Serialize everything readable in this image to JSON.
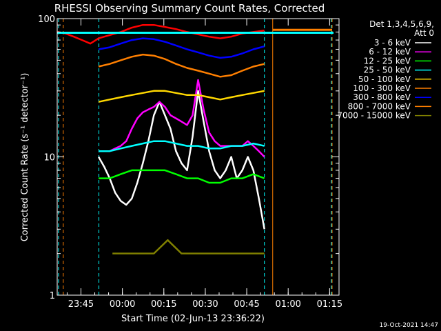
{
  "chart_data": {
    "type": "line",
    "title": "RHESSI Observing Summary Count Rates, Corrected",
    "xlabel": "Start Time (02-Jun-13 23:36:22)",
    "ylabel": "Corrected Count Rate (s⁻¹ detector⁻¹)",
    "y_scale": "log",
    "ylim": [
      1,
      100
    ],
    "xlim_minutes": [
      0,
      102
    ],
    "x_tick_labels": [
      "23:45",
      "00:00",
      "00:15",
      "00:30",
      "00:45",
      "01:00",
      "01:15"
    ],
    "x_tick_minutes": [
      8.6,
      23.6,
      38.6,
      53.6,
      68.6,
      83.6,
      98.6
    ],
    "y_tick_labels": [
      "1",
      "10",
      "100"
    ],
    "y_tick_values": [
      1,
      10,
      100
    ],
    "legend_title": [
      "Det 1,3,4,5,6,9,",
      "Att 0"
    ],
    "legend_position": "right",
    "timestamp": "19-Oct-2021 14:47",
    "vlines_cyan_minutes": [
      0.5,
      15.1,
      75.0,
      99.2
    ],
    "vlines_orange_minutes": [
      2.2,
      78.0,
      99.5
    ],
    "series": [
      {
        "name": "3 - 6 keV",
        "color": "#ffffff",
        "x": [
          15,
          17,
          19,
          21,
          23,
          25,
          27,
          29,
          31,
          33,
          35,
          37,
          39,
          41,
          43,
          45,
          47,
          49,
          51,
          53,
          55,
          57,
          59,
          61,
          63,
          65,
          67,
          69,
          71,
          73,
          75
        ],
        "y": [
          10,
          8.5,
          7,
          5.5,
          4.8,
          4.5,
          5,
          6.5,
          9,
          13,
          20,
          25,
          20,
          16,
          11,
          9,
          8,
          14,
          30,
          18,
          11,
          8,
          7,
          8,
          10,
          7,
          8,
          10,
          8,
          5,
          3
        ]
      },
      {
        "name": "6 - 12 keV",
        "color": "#ff00ff",
        "x": [
          15,
          17,
          19,
          21,
          23,
          25,
          27,
          29,
          31,
          33,
          35,
          37,
          39,
          41,
          43,
          45,
          47,
          49,
          51,
          53,
          55,
          57,
          59,
          61,
          63,
          65,
          67,
          69,
          71,
          73,
          75
        ],
        "y": [
          11,
          11,
          11,
          11.5,
          12,
          13,
          16,
          19,
          21,
          22,
          23,
          25,
          23,
          20,
          19,
          18,
          17,
          20,
          36,
          22,
          15,
          13,
          12,
          12,
          12,
          12,
          12,
          13,
          12,
          11,
          10
        ]
      },
      {
        "name": "12 - 25 keV",
        "color": "#00ff00",
        "x": [
          15,
          19,
          23,
          27,
          31,
          35,
          39,
          43,
          47,
          51,
          55,
          59,
          63,
          67,
          71,
          75
        ],
        "y": [
          7,
          7,
          7.5,
          8,
          8,
          8,
          8,
          7.5,
          7,
          7,
          6.5,
          6.5,
          7,
          7,
          7.5,
          7
        ]
      },
      {
        "name": "25 - 50 keV",
        "color": "#00ffff",
        "x": [
          15,
          19,
          23,
          27,
          31,
          35,
          39,
          43,
          47,
          51,
          55,
          59,
          63,
          67,
          71,
          75
        ],
        "y": [
          11,
          11,
          11.5,
          12,
          12.5,
          13,
          13,
          12.5,
          12,
          12,
          11.5,
          11.5,
          12,
          12,
          12.5,
          12
        ]
      },
      {
        "name": "50 - 100 keV",
        "color": "#ffd800",
        "x": [
          15,
          19,
          23,
          27,
          31,
          35,
          39,
          43,
          47,
          51,
          55,
          59,
          63,
          67,
          71,
          75
        ],
        "y": [
          25,
          26,
          27,
          28,
          29,
          30,
          30,
          29,
          28,
          28,
          27,
          26,
          27,
          28,
          29,
          30
        ]
      },
      {
        "name": "100 - 300 keV",
        "color": "#ff7f00",
        "x": [
          15,
          19,
          23,
          27,
          31,
          35,
          39,
          43,
          47,
          51,
          55,
          59,
          63,
          67,
          71,
          75
        ],
        "y": [
          45,
          47,
          50,
          53,
          55,
          54,
          51,
          47,
          44,
          42,
          40,
          38,
          39,
          42,
          45,
          47
        ]
      },
      {
        "name": "300 - 800 keV",
        "color": "#0000ff",
        "x": [
          15,
          19,
          23,
          27,
          31,
          35,
          39,
          43,
          47,
          51,
          55,
          59,
          63,
          67,
          71,
          75
        ],
        "y": [
          60,
          62,
          66,
          70,
          72,
          71,
          68,
          64,
          60,
          57,
          54,
          52,
          53,
          56,
          60,
          63
        ]
      },
      {
        "name": "800 - 7000 keV",
        "color": "#ff7f00",
        "x": [
          78,
          99.5
        ],
        "y": [
          83,
          83
        ]
      },
      {
        "name": "7000 - 15000 keV",
        "color": "#808000",
        "x": [
          20,
          25,
          30,
          35,
          40,
          45,
          50,
          55,
          60,
          65,
          70,
          75
        ],
        "y": [
          2,
          2,
          2,
          2,
          2.5,
          2,
          2,
          2,
          2,
          2,
          2,
          2
        ]
      },
      {
        "name": "",
        "color": "#ff0000",
        "x": [
          0,
          3,
          6,
          9,
          12,
          15,
          19,
          23,
          27,
          31,
          35,
          39,
          43,
          47,
          51,
          55,
          59,
          63,
          67,
          71,
          75
        ],
        "y": [
          80,
          78,
          74,
          70,
          66,
          72,
          76,
          80,
          86,
          90,
          90,
          87,
          84,
          80,
          77,
          74,
          72,
          74,
          78,
          80,
          82
        ]
      },
      {
        "name": "",
        "color": "#00ffff",
        "x": [
          0,
          100
        ],
        "y": [
          79,
          79
        ]
      }
    ]
  }
}
